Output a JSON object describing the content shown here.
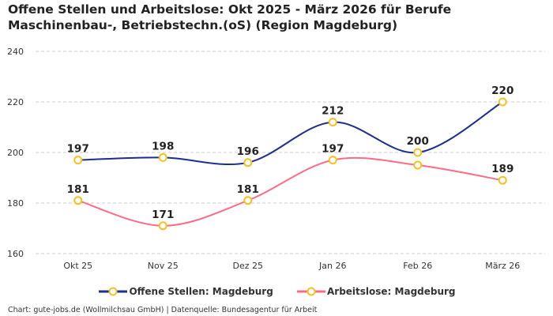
{
  "chart_data": {
    "type": "line",
    "title": "Offene Stellen und Arbeitslose: Okt 2025 - März 2026 für Berufe Maschinenbau-, Betriebstechn.(oS) (Region Magdeburg)",
    "categories": [
      "Okt 25",
      "Nov 25",
      "Dez 25",
      "Jan 26",
      "Feb 26",
      "März 26"
    ],
    "ylim": [
      160,
      240
    ],
    "yticks": [
      160,
      180,
      200,
      220,
      240
    ],
    "grid": true,
    "legend_position": "bottom",
    "series": [
      {
        "name": "Offene Stellen: Magdeburg",
        "color": "#1a2f8f",
        "values": [
          197,
          198,
          196,
          212,
          200,
          220
        ],
        "labels": [
          "197",
          "198",
          "196",
          "212",
          "200",
          "220"
        ]
      },
      {
        "name": "Arbeitslose: Magdeburg",
        "color": "#ff6b85",
        "values": [
          181,
          171,
          181,
          197,
          195,
          189
        ],
        "labels": [
          "181",
          "171",
          "181",
          "197",
          "",
          "189"
        ]
      }
    ],
    "marker_color": "#f5c022"
  },
  "footer": "Chart: gute-jobs.de (Wollmilchsau GmbH) | Datenquelle: Bundesagentur für Arbeit"
}
